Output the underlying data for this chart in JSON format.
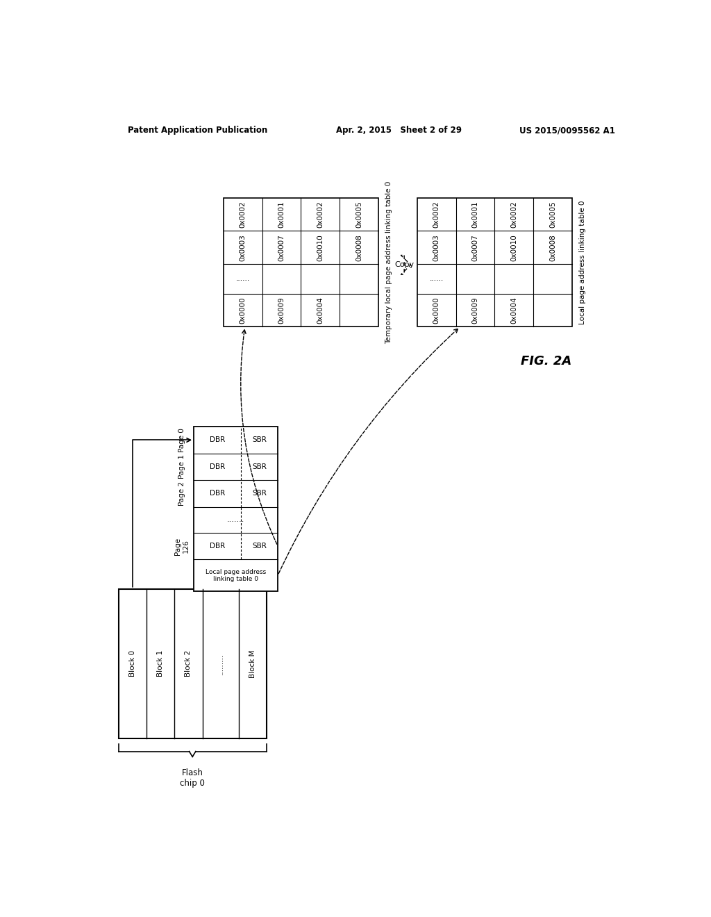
{
  "header_left": "Patent Application Publication",
  "header_mid": "Apr. 2, 2015   Sheet 2 of 29",
  "header_right": "US 2015/0095562 A1",
  "fig_label": "FIG. 2A",
  "bg_color": "#ffffff",
  "flash_chip_blocks": [
    "Block 0",
    "Block 1",
    "Block 2",
    ".........",
    "Block M"
  ],
  "flash_chip_label": "Flash\nchip 0",
  "page_table_row_labels": [
    "Page 0",
    "Page 1",
    "Page 2",
    "Page\n126"
  ],
  "page_table_dots": ".......",
  "page_table_local_label": "Local page address\nlinking table 0",
  "temp_table_title": "Temporary local page address linking table 0",
  "temp_table_rows": [
    [
      "0x0002",
      "0x0001",
      "0x0002",
      "0x0005"
    ],
    [
      "0x0003",
      "0x0007",
      "0x0010",
      "0x0008"
    ],
    [
      "......",
      "",
      "",
      ""
    ],
    [
      "0x0000",
      "0x0009",
      "0x0004",
      ""
    ]
  ],
  "local_table_title": "Local page address linking table 0",
  "local_table_rows": [
    [
      "0x0002",
      "0x0001",
      "0x0002",
      "0x0005"
    ],
    [
      "0x0003",
      "0x0007",
      "0x0010",
      "0x0008"
    ],
    [
      "......",
      "",
      "",
      ""
    ],
    [
      "0x0000",
      "0x0009",
      "0x0004",
      ""
    ]
  ],
  "copy_label": "Copy"
}
